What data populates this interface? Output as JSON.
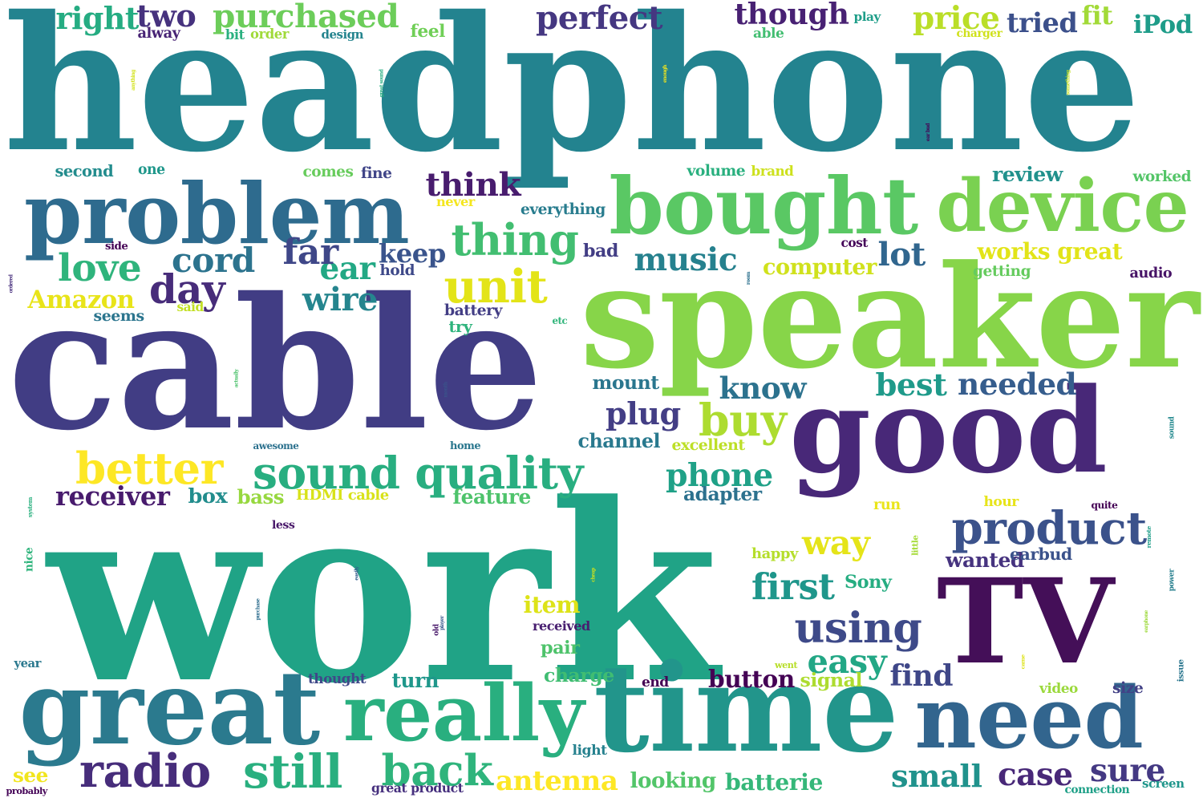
{
  "words": [
    {
      "text": "headphone",
      "color": "#23838f"
    },
    {
      "text": "cable",
      "color": "#413d84"
    },
    {
      "text": "work",
      "color": "#20a386"
    },
    {
      "text": "speaker",
      "color": "#87d549"
    },
    {
      "text": "good",
      "color": "#482878"
    },
    {
      "text": "TV",
      "color": "#440f58"
    },
    {
      "text": "time",
      "color": "#22958b"
    },
    {
      "text": "great",
      "color": "#2b7a8e"
    },
    {
      "text": "really",
      "color": "#29af7f"
    },
    {
      "text": "need",
      "color": "#32658e"
    },
    {
      "text": "problem",
      "color": "#2e6b8e"
    },
    {
      "text": "bought",
      "color": "#5ac864"
    },
    {
      "text": "device",
      "color": "#7ad151"
    },
    {
      "text": "sound quality",
      "color": "#28ae80"
    },
    {
      "text": "thing",
      "color": "#42be71"
    },
    {
      "text": "love",
      "color": "#2fb47c"
    },
    {
      "text": "unit",
      "color": "#e3e418"
    },
    {
      "text": "product",
      "color": "#3b528b"
    },
    {
      "text": "radio",
      "color": "#472d7b"
    },
    {
      "text": "still",
      "color": "#29af7f"
    },
    {
      "text": "back",
      "color": "#2fb47c"
    },
    {
      "text": "better",
      "color": "#fde725"
    },
    {
      "text": "buy",
      "color": "#addc30"
    },
    {
      "text": "using",
      "color": "#3e4a89"
    },
    {
      "text": "way",
      "color": "#e5e419"
    },
    {
      "text": "purchased",
      "color": "#6ccd5a"
    },
    {
      "text": "perfect",
      "color": "#453781"
    },
    {
      "text": "though",
      "color": "#482173"
    },
    {
      "text": "price",
      "color": "#bade28"
    },
    {
      "text": "tried",
      "color": "#3c508b"
    },
    {
      "text": "fit",
      "color": "#a2da37"
    },
    {
      "text": "iPod",
      "color": "#1e9c89"
    },
    {
      "text": "right",
      "color": "#25ac82"
    },
    {
      "text": "two",
      "color": "#46327e"
    },
    {
      "text": "works great",
      "color": "#e2e418"
    },
    {
      "text": "cord",
      "color": "#2c738e"
    },
    {
      "text": "music",
      "color": "#26818e"
    },
    {
      "text": "lot",
      "color": "#31668e"
    },
    {
      "text": "think",
      "color": "#481c6e"
    },
    {
      "text": "sound",
      "color": "#23898e"
    },
    {
      "text": "power",
      "color": "#277f8e"
    },
    {
      "text": "remote",
      "color": "#1f9e89"
    },
    {
      "text": "issue",
      "color": "#2a768e"
    },
    {
      "text": "little",
      "color": "#a5db36"
    },
    {
      "text": "nice",
      "color": "#2fb47c"
    },
    {
      "text": "system",
      "color": "#2ab07f"
    },
    {
      "text": "first",
      "color": "#1f968b"
    },
    {
      "text": "easy",
      "color": "#22a785"
    },
    {
      "text": "item",
      "color": "#dde318"
    },
    {
      "text": "phone",
      "color": "#1fa187"
    },
    {
      "text": "best",
      "color": "#1f9a8a"
    },
    {
      "text": "needed",
      "color": "#365d8d"
    },
    {
      "text": "know",
      "color": "#2c728e"
    },
    {
      "text": "plug",
      "color": "#433e85"
    },
    {
      "text": "wire",
      "color": "#25858e"
    },
    {
      "text": "ear",
      "color": "#22a884"
    },
    {
      "text": "day",
      "color": "#472c7a"
    },
    {
      "text": "Amazon",
      "color": "#e8e419"
    },
    {
      "text": "keep",
      "color": "#3a548c"
    },
    {
      "text": "far",
      "color": "#3f4788"
    },
    {
      "text": "small",
      "color": "#20928c"
    },
    {
      "text": "case",
      "color": "#482878"
    },
    {
      "text": "sure",
      "color": "#443983"
    },
    {
      "text": "batterie",
      "color": "#35b779"
    },
    {
      "text": "antenna",
      "color": "#fde725"
    },
    {
      "text": "looking",
      "color": "#52c569"
    },
    {
      "text": "see",
      "color": "#f1e51d"
    },
    {
      "text": "find",
      "color": "#3f4788"
    },
    {
      "text": "button",
      "color": "#440154"
    },
    {
      "text": "turn",
      "color": "#1f978b"
    },
    {
      "text": "receiver",
      "color": "#481b6d"
    },
    {
      "text": "box",
      "color": "#228d8d"
    },
    {
      "text": "bass",
      "color": "#97d83f"
    },
    {
      "text": "HDMI cable",
      "color": "#d8e219"
    },
    {
      "text": "feature",
      "color": "#4ec36b"
    },
    {
      "text": "adapter",
      "color": "#2c718e"
    },
    {
      "text": "channel",
      "color": "#29798e"
    },
    {
      "text": "excellent",
      "color": "#bddf26"
    },
    {
      "text": "mount",
      "color": "#2a768e"
    },
    {
      "text": "wanted",
      "color": "#46337f"
    },
    {
      "text": "earbud",
      "color": "#3b528b"
    },
    {
      "text": "Sony",
      "color": "#26ad81"
    },
    {
      "text": "computer",
      "color": "#d0e11c"
    },
    {
      "text": "getting",
      "color": "#65cb5e"
    },
    {
      "text": "audio",
      "color": "#481467"
    },
    {
      "text": "review",
      "color": "#21918c"
    },
    {
      "text": "worked",
      "color": "#54c568"
    },
    {
      "text": "volume",
      "color": "#2ab07f"
    },
    {
      "text": "brand",
      "color": "#cde11d"
    },
    {
      "text": "everything",
      "color": "#287c8e"
    },
    {
      "text": "never",
      "color": "#f4e61e"
    },
    {
      "text": "bad",
      "color": "#433e85"
    },
    {
      "text": "hold",
      "color": "#3e4989"
    },
    {
      "text": "second",
      "color": "#228c8d"
    },
    {
      "text": "one",
      "color": "#1f978b"
    },
    {
      "text": "comes",
      "color": "#67cc5c"
    },
    {
      "text": "fine",
      "color": "#404588"
    },
    {
      "text": "feel",
      "color": "#70cf57"
    },
    {
      "text": "alway",
      "color": "#482475"
    },
    {
      "text": "bit",
      "color": "#2ab07f"
    },
    {
      "text": "order",
      "color": "#a0da39"
    },
    {
      "text": "design",
      "color": "#25848e"
    },
    {
      "text": "play",
      "color": "#1f9e89"
    },
    {
      "text": "able",
      "color": "#42be71"
    },
    {
      "text": "charger",
      "color": "#d0e11c"
    },
    {
      "text": "seems",
      "color": "#2b758e"
    },
    {
      "text": "said",
      "color": "#c2df23"
    },
    {
      "text": "side",
      "color": "#440154"
    },
    {
      "text": "battery",
      "color": "#433e85"
    },
    {
      "text": "try",
      "color": "#2eb37c"
    },
    {
      "text": "etc",
      "color": "#31b57b"
    },
    {
      "text": "cost",
      "color": "#450559"
    },
    {
      "text": "awesome",
      "color": "#2c718e"
    },
    {
      "text": "home",
      "color": "#2a778e"
    },
    {
      "text": "less",
      "color": "#481769"
    },
    {
      "text": "run",
      "color": "#eae51a"
    },
    {
      "text": "hour",
      "color": "#e7e419"
    },
    {
      "text": "quite",
      "color": "#440154"
    },
    {
      "text": "happy",
      "color": "#b5de2b"
    },
    {
      "text": "went",
      "color": "#b8de29"
    },
    {
      "text": "video",
      "color": "#9bd93c"
    },
    {
      "text": "size",
      "color": "#424186"
    },
    {
      "text": "received",
      "color": "#481f70"
    },
    {
      "text": "pair",
      "color": "#4ec36b"
    },
    {
      "text": "charge",
      "color": "#40bd72"
    },
    {
      "text": "light",
      "color": "#26818e"
    },
    {
      "text": "end",
      "color": "#440154"
    },
    {
      "text": "signal",
      "color": "#addc30"
    },
    {
      "text": "thought",
      "color": "#3f4889"
    },
    {
      "text": "year",
      "color": "#2a788e"
    },
    {
      "text": "probably",
      "color": "#450457"
    },
    {
      "text": "great product",
      "color": "#46307e"
    },
    {
      "text": "connection",
      "color": "#1fa088"
    },
    {
      "text": "screen",
      "color": "#1f968b"
    },
    {
      "text": "ordered",
      "color": "#472f7d"
    },
    {
      "text": "actually",
      "color": "#4cc26c"
    },
    {
      "text": "month",
      "color": "#3a538b"
    },
    {
      "text": "easily",
      "color": "#355f8d"
    },
    {
      "text": "purchase",
      "color": "#2e6e8e"
    },
    {
      "text": "old",
      "color": "#48186a"
    },
    {
      "text": "player",
      "color": "#38588c"
    },
    {
      "text": "cheap",
      "color": "#c8e020"
    },
    {
      "text": "came",
      "color": "#dde318"
    },
    {
      "text": "earphone",
      "color": "#9dd93b"
    },
    {
      "text": "anything",
      "color": "#d2e21b"
    },
    {
      "text": "great sound",
      "color": "#27ad81"
    },
    {
      "text": "enough",
      "color": "#f1e51d"
    },
    {
      "text": "ear bud",
      "color": "#440154"
    },
    {
      "text": "something",
      "color": "#c0df25"
    },
    {
      "text": "room",
      "color": "#2d718e"
    }
  ]
}
